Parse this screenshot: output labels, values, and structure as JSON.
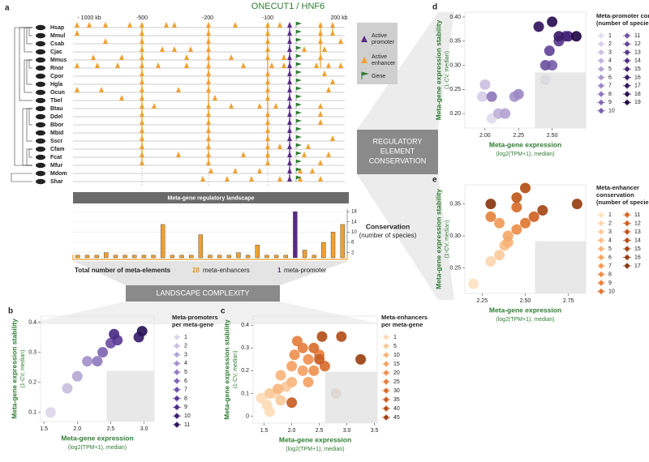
{
  "panel_a": {
    "label": "a",
    "title": "ONECUT1 / HNF6",
    "axis_labels": [
      "- 1000 kb",
      "-500",
      "-200",
      "-100",
      "200 kb"
    ],
    "species": [
      {
        "name": "Hsap",
        "color": "#2b3f9e"
      },
      {
        "name": "Mmul",
        "color": "#2b3f9e"
      },
      {
        "name": "Csab",
        "color": "#2b3f9e"
      },
      {
        "name": "Cjac",
        "color": "#2b3f9e"
      },
      {
        "name": "Mmus",
        "color": "#2b3f9e"
      },
      {
        "name": "Rnor",
        "color": "#2b3f9e"
      },
      {
        "name": "Cpor",
        "color": "#2b3f9e"
      },
      {
        "name": "Hgla",
        "color": "#222222"
      },
      {
        "name": "Ocun",
        "color": "#2b3f9e"
      },
      {
        "name": "Tbel",
        "color": "#222222"
      },
      {
        "name": "Btau",
        "color": "#2b3f9e"
      },
      {
        "name": "Ddel",
        "color": "#222222"
      },
      {
        "name": "Bbor",
        "color": "#222222"
      },
      {
        "name": "Mbid",
        "color": "#222222"
      },
      {
        "name": "Sscr",
        "color": "#2b3f9e"
      },
      {
        "name": "Cfam",
        "color": "#2b3f9e"
      },
      {
        "name": "Fcat",
        "color": "#2b3f9e"
      },
      {
        "name": "Mfur",
        "color": "#2b3f9e"
      },
      {
        "name": "Mdom",
        "color": "#2b3f9e"
      },
      {
        "name": "Shar",
        "color": "#222222"
      }
    ],
    "legend": [
      "Active",
      "promoter",
      "Active",
      "enhancer",
      "Gene"
    ],
    "totals": {
      "label": "Total number of meta-elements",
      "enhancers": "28",
      "enhancers_label": "meta-enhancers",
      "promoters": "1",
      "promoters_label": "meta-promoter"
    },
    "box_complexity": "LANDSCAPE COMPLEXITY",
    "box_conservation": [
      "REGULATORY",
      "ELEMENT",
      "CONSERVATION"
    ]
  },
  "chart_data": [
    {
      "type": "bar",
      "title": "Meta-gene regulatory landscape",
      "y_label": "Conservation",
      "y_sublabel": "(number of species)",
      "values": [
        1,
        1,
        1,
        2,
        1,
        1,
        1,
        1,
        1,
        13,
        1,
        1,
        1,
        9,
        1,
        1,
        1,
        2,
        1,
        5,
        1,
        1,
        1,
        18,
        3,
        1,
        6,
        10,
        13
      ],
      "colors": [
        "#f0a030",
        "#f0a030",
        "#f0a030",
        "#f0a030",
        "#f0a030",
        "#f0a030",
        "#f0a030",
        "#f0a030",
        "#f0a030",
        "#f0a030",
        "#f0a030",
        "#f0a030",
        "#f0a030",
        "#f0a030",
        "#f0a030",
        "#f0a030",
        "#f0a030",
        "#f0a030",
        "#f0a030",
        "#f0a030",
        "#f0a030",
        "#f0a030",
        "#f0a030",
        "#5b2a86",
        "#f0a030",
        "#f0a030",
        "#f0a030",
        "#f0a030",
        "#f0a030"
      ],
      "ylim": [
        0,
        19
      ],
      "yticks": [
        2,
        6,
        10,
        14,
        18
      ]
    },
    {
      "type": "scatter",
      "label": "b",
      "x_label": "Meta-gene expression",
      "x_sublabel": "(log2(TPM+1), median)",
      "y_label": "Meta-gene expression stability",
      "y_sublabel": "(1-CV, median)",
      "legend_title": [
        "Meta-promoters",
        "per meta-gene"
      ],
      "xlim": [
        1.45,
        3.15
      ],
      "xticks": [
        1.5,
        {
          "value": 2,
          "label": "2.0"
        },
        2.5,
        {
          "value": 3,
          "label": "3.0"
        }
      ],
      "ylim": [
        0.07,
        0.42
      ],
      "yticks": [
        0.1,
        0.2,
        0.3,
        0.4
      ],
      "series": [
        {
          "name": "1",
          "color": "#dcd6ea",
          "x": [
            1.6
          ],
          "y": [
            0.1
          ]
        },
        {
          "name": "2",
          "color": "#c9bfe0",
          "x": [
            1.85
          ],
          "y": [
            0.18
          ]
        },
        {
          "name": "3",
          "color": "#b6a8d5",
          "x": [
            2.0
          ],
          "y": [
            0.22
          ]
        },
        {
          "name": "4",
          "color": "#a391ca",
          "x": [
            2.15
          ],
          "y": [
            0.27
          ]
        },
        {
          "name": "5",
          "color": "#917bbf",
          "x": [
            2.3
          ],
          "y": [
            0.27
          ]
        },
        {
          "name": "6",
          "color": "#7f65b4",
          "x": [
            2.38
          ],
          "y": [
            0.3
          ]
        },
        {
          "name": "7",
          "color": "#6d50a6",
          "x": [
            2.5
          ],
          "y": [
            0.33
          ]
        },
        {
          "name": "8",
          "color": "#5c3d96",
          "x": [
            2.6
          ],
          "y": [
            0.34
          ]
        },
        {
          "name": "9",
          "color": "#4b2c84",
          "x": [
            2.55
          ],
          "y": [
            0.36
          ]
        },
        {
          "name": "10",
          "color": "#3a1e6e",
          "x": [
            2.92
          ],
          "y": [
            0.35
          ]
        },
        {
          "name": "11",
          "color": "#2a1356",
          "x": [
            2.97
          ],
          "y": [
            0.37
          ]
        }
      ]
    },
    {
      "type": "scatter",
      "label": "c",
      "x_label": "Meta-gene expression",
      "x_sublabel": "(log2(TPM+1), median)",
      "y_label": "Meta-gene expression stability",
      "y_sublabel": "(1-CV, median)",
      "legend_title": [
        "Meta-enhancers",
        "per meta-gene"
      ],
      "xlim": [
        1.3,
        3.55
      ],
      "xticks": [
        1.5,
        {
          "value": 2,
          "label": "2.0"
        },
        2.5,
        {
          "value": 3,
          "label": "3.0"
        },
        3.5
      ],
      "ylim": [
        -0.03,
        0.44
      ],
      "yticks": [
        0,
        0.1,
        0.2,
        0.3,
        0.4
      ],
      "series": [
        {
          "name": "1",
          "color": "#fddcb8",
          "x": [
            1.45,
            1.55,
            1.6,
            1.7
          ],
          "y": [
            0.08,
            0.05,
            0.02,
            0.1
          ]
        },
        {
          "name": "5",
          "color": "#fbc99a",
          "x": [
            1.6,
            1.8,
            1.9
          ],
          "y": [
            0.1,
            0.07,
            0.13
          ]
        },
        {
          "name": "10",
          "color": "#f8b57d",
          "x": [
            1.8,
            2.0,
            1.75
          ],
          "y": [
            0.18,
            0.15,
            0.12
          ]
        },
        {
          "name": "15",
          "color": "#f4a265",
          "x": [
            2.0,
            2.2,
            2.3
          ],
          "y": [
            0.22,
            0.2,
            0.15
          ]
        },
        {
          "name": "20",
          "color": "#ef9050",
          "x": [
            2.05,
            2.3,
            2.4
          ],
          "y": [
            0.27,
            0.25,
            0.2
          ]
        },
        {
          "name": "25",
          "color": "#e57f3e",
          "x": [
            2.2,
            2.5,
            2.1
          ],
          "y": [
            0.3,
            0.27,
            0.33
          ]
        },
        {
          "name": "30",
          "color": "#d96e2f",
          "x": [
            2.4,
            2.6
          ],
          "y": [
            0.3,
            0.22
          ]
        },
        {
          "name": "35",
          "color": "#c85e24",
          "x": [
            2.5,
            2.0
          ],
          "y": [
            0.25,
            0.06
          ]
        },
        {
          "name": "40",
          "color": "#b44f1b",
          "x": [
            2.55,
            2.9
          ],
          "y": [
            0.35,
            0.35
          ]
        },
        {
          "name": "45",
          "color": "#9c4214",
          "x": [
            3.25,
            2.8
          ],
          "y": [
            0.25,
            0.1
          ]
        }
      ]
    },
    {
      "type": "scatter",
      "label": "d",
      "x_label": "Meta-gene expression",
      "x_sublabel": "(log2(TPM+1), median)",
      "y_label": "Meta-gene expression stability",
      "y_sublabel": "(1-CV, median)",
      "legend_title": [
        "Meta-promoter conservation",
        "(number of species)"
      ],
      "xlim": [
        1.85,
        2.75
      ],
      "xticks": [
        {
          "value": 2,
          "label": "2.00"
        },
        2.25,
        {
          "value": 2.5,
          "label": "2.50"
        }
      ],
      "ylim": [
        0.17,
        0.41
      ],
      "yticks": [
        {
          "value": 0.2,
          "label": "0.20"
        },
        0.25,
        {
          "value": 0.3,
          "label": "0.30"
        },
        0.35,
        {
          "value": 0.4,
          "label": "0.40"
        }
      ],
      "series": [
        {
          "name": "1",
          "color": "#e2dcee",
          "x": [
            2.05
          ],
          "y": [
            0.19
          ]
        },
        {
          "name": "2",
          "color": "#d6cee7",
          "x": [
            1.98
          ],
          "y": [
            0.235
          ]
        },
        {
          "name": "3",
          "color": "#cbc0e0",
          "x": [
            2.0
          ],
          "y": [
            0.26
          ]
        },
        {
          "name": "4",
          "color": "#bfb2d9",
          "x": [
            2.1
          ],
          "y": [
            0.2
          ]
        },
        {
          "name": "5",
          "color": "#b3a4d2",
          "x": [
            2.15
          ],
          "y": [
            0.2
          ]
        },
        {
          "name": "6",
          "color": "#a796cb",
          "x": [
            2.22
          ],
          "y": [
            0.235
          ]
        },
        {
          "name": "7",
          "color": "#9b88c3",
          "x": [
            2.25
          ],
          "y": [
            0.24
          ]
        },
        {
          "name": "8",
          "color": "#8f7abb",
          "x": [
            2.05
          ],
          "y": [
            0.235
          ]
        },
        {
          "name": "9",
          "color": "#846db3",
          "x": [
            2.45
          ],
          "y": [
            0.27
          ]
        },
        {
          "name": "10",
          "color": "#7960aa",
          "x": [
            2.5
          ],
          "y": [
            0.3
          ]
        },
        {
          "name": "11",
          "color": "#6e53a1",
          "x": [
            2.45
          ],
          "y": [
            0.3
          ]
        },
        {
          "name": "12",
          "color": "#634797",
          "x": [
            2.48
          ],
          "y": [
            0.33
          ]
        },
        {
          "name": "13",
          "color": "#593b8c",
          "x": [
            2.55
          ],
          "y": [
            0.35
          ]
        },
        {
          "name": "14",
          "color": "#4f3081",
          "x": [
            2.6
          ],
          "y": [
            0.36
          ]
        },
        {
          "name": "15",
          "color": "#452676",
          "x": [
            2.62
          ],
          "y": [
            0.36
          ]
        },
        {
          "name": "16",
          "color": "#3c1d6a",
          "x": [
            2.55
          ],
          "y": [
            0.36
          ]
        },
        {
          "name": "17",
          "color": "#33155e",
          "x": [
            2.4
          ],
          "y": [
            0.38
          ]
        },
        {
          "name": "18",
          "color": "#2a0e52",
          "x": [
            2.5
          ],
          "y": [
            0.39
          ]
        },
        {
          "name": "19",
          "color": "#220846",
          "x": [
            2.68
          ],
          "y": [
            0.36
          ]
        }
      ]
    },
    {
      "type": "scatter",
      "label": "e",
      "x_label": "Meta-gene expression",
      "x_sublabel": "(log2(TPM+1), median)",
      "y_label": "Meta-gene expression stability",
      "y_sublabel": "(1-CV, median)",
      "legend_title": [
        "Meta-enhancer",
        "conservation",
        "(number of species)"
      ],
      "xlim": [
        2.15,
        2.85
      ],
      "xticks": [
        2.25,
        {
          "value": 2.5,
          "label": "2.50"
        },
        2.75
      ],
      "ylim": [
        0.21,
        0.38
      ],
      "yticks": [
        0.25,
        {
          "value": 0.3,
          "label": "0.30"
        },
        0.35
      ],
      "series": [
        {
          "name": "1",
          "color": "#fde2c4",
          "x": [
            2.2
          ],
          "y": [
            0.225
          ]
        },
        {
          "name": "2",
          "color": "#fcd6b0",
          "x": [
            2.3
          ],
          "y": [
            0.26
          ]
        },
        {
          "name": "3",
          "color": "#fbca9c",
          "x": [
            2.35
          ],
          "y": [
            0.27
          ]
        },
        {
          "name": "4",
          "color": "#f9be89",
          "x": [
            2.38
          ],
          "y": [
            0.285
          ]
        },
        {
          "name": "5",
          "color": "#f7b277",
          "x": [
            2.4
          ],
          "y": [
            0.29
          ]
        },
        {
          "name": "6",
          "color": "#f4a666",
          "x": [
            2.4
          ],
          "y": [
            0.3
          ]
        },
        {
          "name": "7",
          "color": "#f19a57",
          "x": [
            2.35
          ],
          "y": [
            0.32
          ]
        },
        {
          "name": "8",
          "color": "#ec8e49",
          "x": [
            2.45
          ],
          "y": [
            0.31
          ]
        },
        {
          "name": "9",
          "color": "#e6823d",
          "x": [
            2.3
          ],
          "y": [
            0.33
          ]
        },
        {
          "name": "10",
          "color": "#df7733",
          "x": [
            2.5
          ],
          "y": [
            0.32
          ]
        },
        {
          "name": "11",
          "color": "#d66c2a",
          "x": [
            2.45
          ],
          "y": [
            0.345
          ]
        },
        {
          "name": "12",
          "color": "#cc6223",
          "x": [
            2.55
          ],
          "y": [
            0.33
          ]
        },
        {
          "name": "13",
          "color": "#c0581d",
          "x": [
            2.45
          ],
          "y": [
            0.36
          ]
        },
        {
          "name": "14",
          "color": "#b34f18",
          "x": [
            2.5
          ],
          "y": [
            0.375
          ]
        },
        {
          "name": "15",
          "color": "#a54614",
          "x": [
            2.6
          ],
          "y": [
            0.34
          ]
        },
        {
          "name": "16",
          "color": "#973e11",
          "x": [
            2.8
          ],
          "y": [
            0.35
          ]
        },
        {
          "name": "17",
          "color": "#88360e",
          "x": [
            2.3
          ],
          "y": [
            0.35
          ]
        }
      ]
    }
  ]
}
